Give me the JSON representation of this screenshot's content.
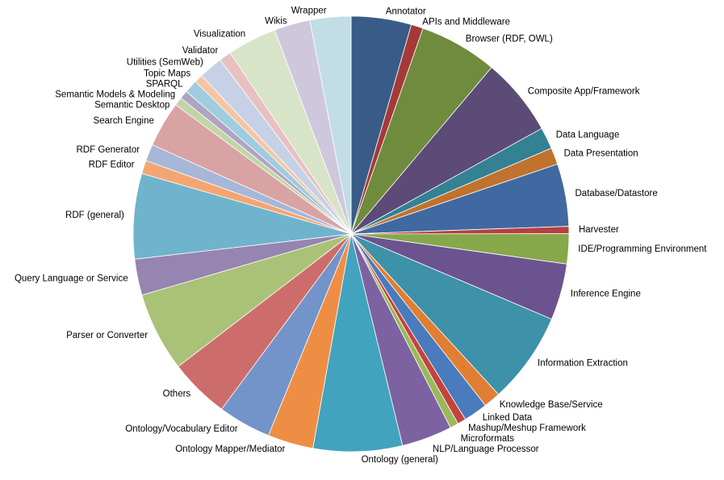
{
  "chart_data": {
    "type": "pie",
    "title": "",
    "legend": "none",
    "slices": [
      {
        "label": "Annotator",
        "value": 5.0,
        "color": "#395b87"
      },
      {
        "label": "APIs and Middleware",
        "value": 1.0,
        "color": "#a33a37"
      },
      {
        "label": "Browser (RDF, OWL)",
        "value": 6.5,
        "color": "#6f8b3d"
      },
      {
        "label": "Composite App/Framework",
        "value": 6.5,
        "color": "#5c4a77"
      },
      {
        "label": "Data Language",
        "value": 1.8,
        "color": "#348193"
      },
      {
        "label": "Data Presentation",
        "value": 1.4,
        "color": "#c0722e"
      },
      {
        "label": "Database/Datastore",
        "value": 5.2,
        "color": "#4169a1"
      },
      {
        "label": "Harvester",
        "value": 0.6,
        "color": "#b6403d"
      },
      {
        "label": "IDE/Programming Environment",
        "value": 2.5,
        "color": "#86a84b"
      },
      {
        "label": "Inference Engine",
        "value": 4.7,
        "color": "#6b5390"
      },
      {
        "label": "Information Extraction",
        "value": 7.6,
        "color": "#3d91a8"
      },
      {
        "label": "Knowledge Base/Service",
        "value": 1.4,
        "color": "#e07f33"
      },
      {
        "label": "Linked Data",
        "value": 2.0,
        "color": "#4a7bbd"
      },
      {
        "label": "Mashup/Meshup Framework",
        "value": 0.7,
        "color": "#c4433f"
      },
      {
        "label": "Microformats",
        "value": 0.7,
        "color": "#9ab95a"
      },
      {
        "label": "NLP/Language Processor",
        "value": 4.2,
        "color": "#7d62a1"
      },
      {
        "label": "Ontology (general)",
        "value": 7.4,
        "color": "#42a3be"
      },
      {
        "label": "Ontology Mapper/Mediator",
        "value": 3.8,
        "color": "#ee8e44"
      },
      {
        "label": "Ontology/Vocabulary Editor",
        "value": 4.4,
        "color": "#7394c9"
      },
      {
        "label": "Others",
        "value": 5.0,
        "color": "#cd6d6b"
      },
      {
        "label": "Parser or Converter",
        "value": 6.6,
        "color": "#a9c277"
      },
      {
        "label": "Query Language or Service",
        "value": 3.0,
        "color": "#9585b0"
      },
      {
        "label": "RDF (general)",
        "value": 7.1,
        "color": "#6fb4cc"
      },
      {
        "label": "RDF Editor",
        "value": 1.1,
        "color": "#f4a672"
      },
      {
        "label": "RDF Generator",
        "value": 1.4,
        "color": "#a7b7d8"
      },
      {
        "label": "Search Engine",
        "value": 3.8,
        "color": "#d9a3a3"
      },
      {
        "label": "Semantic Desktop",
        "value": 0.7,
        "color": "#c2d5a6"
      },
      {
        "label": "Semantic Models & Modeling",
        "value": 0.7,
        "color": "#b0a4c5"
      },
      {
        "label": "SPARQL",
        "value": 1.1,
        "color": "#9fcddd"
      },
      {
        "label": "Topic Maps",
        "value": 0.7,
        "color": "#f7c4a3"
      },
      {
        "label": "Utilities (SemWeb)",
        "value": 2.0,
        "color": "#c7d1e6"
      },
      {
        "label": "Validator",
        "value": 1.0,
        "color": "#e7c1c1"
      },
      {
        "label": "Visualization",
        "value": 4.1,
        "color": "#d8e4c7"
      },
      {
        "label": "Wikis",
        "value": 3.0,
        "color": "#cfc8dd"
      },
      {
        "label": "Wrapper",
        "value": 3.4,
        "color": "#c1dde6"
      }
    ]
  }
}
